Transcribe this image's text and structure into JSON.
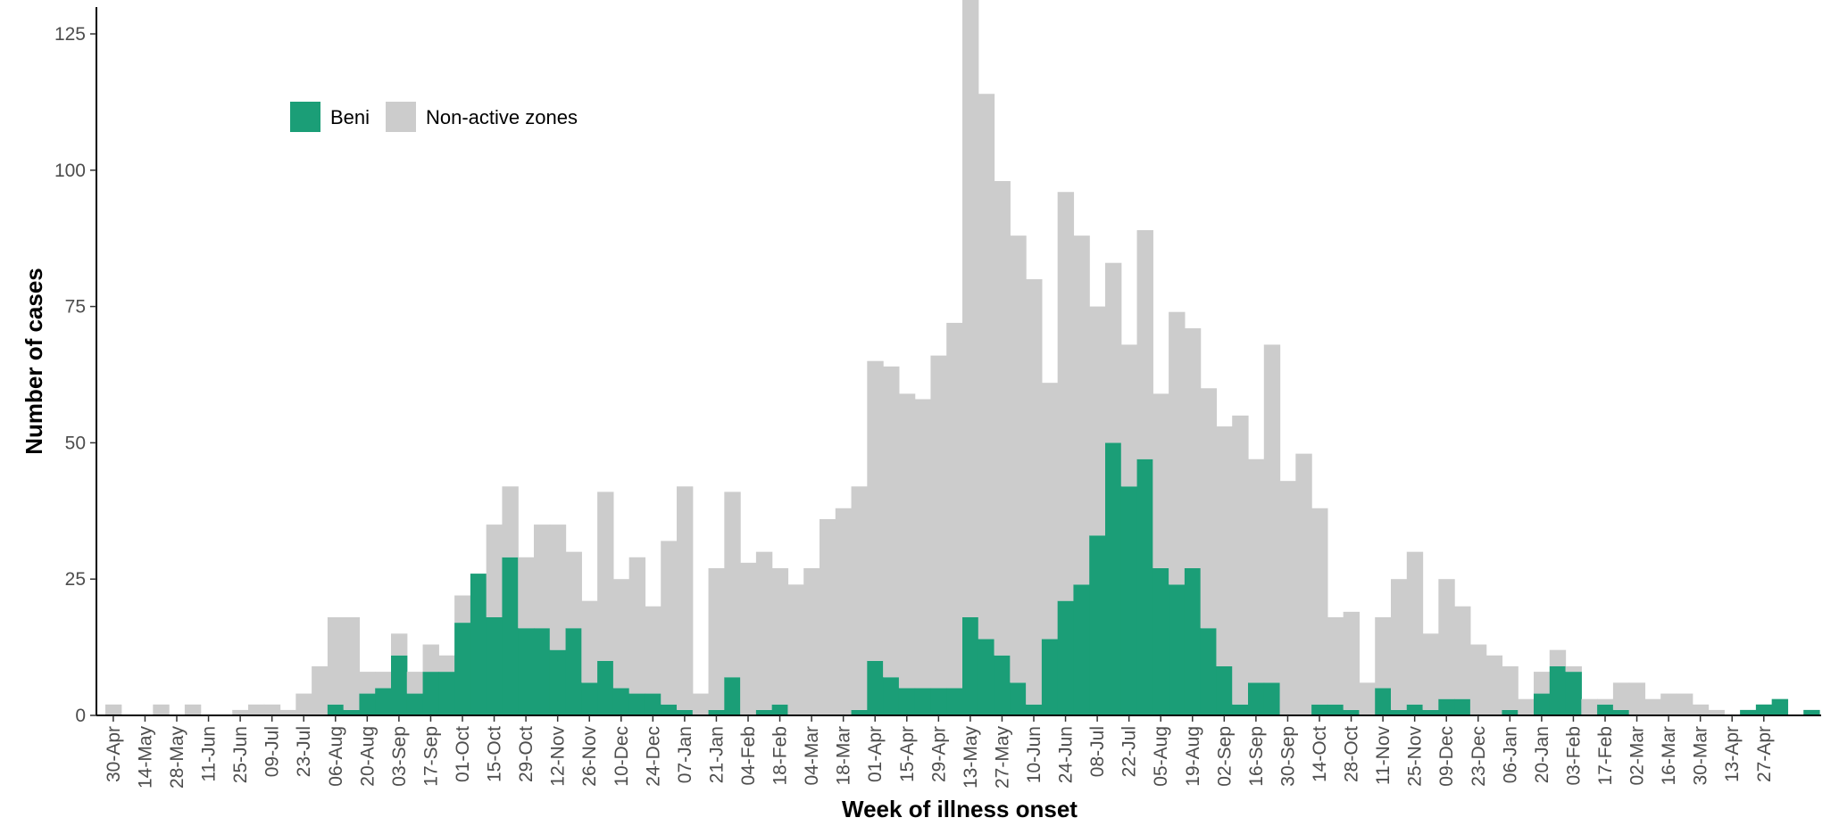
{
  "chart_data": {
    "type": "bar",
    "stacked": true,
    "title": "",
    "xlabel": "Week of illness onset",
    "ylabel": "Number of cases",
    "ylim": [
      0,
      125
    ],
    "yticks": [
      0,
      25,
      50,
      75,
      100,
      125
    ],
    "grid": false,
    "legend_position": "top-left",
    "x_tick_labels": [
      "30-Apr",
      "14-May",
      "28-May",
      "11-Jun",
      "25-Jun",
      "09-Jul",
      "23-Jul",
      "06-Aug",
      "20-Aug",
      "03-Sep",
      "17-Sep",
      "01-Oct",
      "15-Oct",
      "29-Oct",
      "12-Nov",
      "26-Nov",
      "10-Dec",
      "24-Dec",
      "07-Jan",
      "21-Jan",
      "04-Feb",
      "18-Feb",
      "04-Mar",
      "18-Mar",
      "01-Apr",
      "15-Apr",
      "29-Apr",
      "13-May",
      "27-May",
      "10-Jun",
      "24-Jun",
      "08-Jul",
      "22-Jul",
      "05-Aug",
      "19-Aug",
      "02-Sep",
      "16-Sep",
      "30-Sep",
      "14-Oct",
      "28-Oct",
      "11-Nov",
      "25-Nov",
      "09-Dec",
      "23-Dec",
      "06-Jan",
      "20-Jan",
      "03-Feb",
      "17-Feb",
      "02-Mar",
      "16-Mar",
      "30-Mar",
      "13-Apr",
      "27-Apr"
    ],
    "series": [
      {
        "name": "Beni",
        "color": "#1b9e77",
        "values": [
          0,
          0,
          0,
          0,
          0,
          0,
          0,
          0,
          0,
          0,
          0,
          0,
          0,
          0,
          2,
          1,
          4,
          5,
          11,
          4,
          8,
          8,
          17,
          26,
          18,
          29,
          16,
          16,
          12,
          16,
          6,
          10,
          5,
          4,
          4,
          2,
          1,
          0,
          1,
          7,
          0,
          1,
          2,
          0,
          0,
          0,
          0,
          1,
          10,
          7,
          5,
          5,
          5,
          5,
          18,
          14,
          11,
          6,
          2,
          14,
          21,
          24,
          33,
          50,
          42,
          47,
          27,
          24,
          27,
          16,
          9,
          2,
          6,
          6,
          0,
          0,
          2,
          2,
          1,
          0,
          5,
          1,
          2,
          1,
          3,
          3,
          0,
          0,
          1,
          0,
          4,
          9,
          8,
          0,
          2,
          1,
          0,
          0,
          0,
          0,
          0,
          0,
          0,
          1,
          2,
          3,
          0,
          1
        ]
      },
      {
        "name": "Non-active zones",
        "color": "#cccccc",
        "values": [
          2,
          0,
          0,
          2,
          0,
          2,
          0,
          0,
          1,
          2,
          2,
          1,
          4,
          9,
          16,
          17,
          4,
          3,
          4,
          4,
          5,
          3,
          5,
          0,
          17,
          13,
          13,
          19,
          23,
          14,
          15,
          31,
          20,
          25,
          16,
          30,
          41,
          4,
          26,
          34,
          28,
          29,
          25,
          24,
          27,
          36,
          38,
          41,
          55,
          57,
          54,
          53,
          61,
          67,
          117,
          100,
          87,
          82,
          78,
          47,
          75,
          64,
          42,
          33,
          26,
          42,
          32,
          50,
          44,
          44,
          44,
          53,
          41,
          62,
          43,
          48,
          36,
          16,
          18,
          6,
          13,
          24,
          28,
          14,
          22,
          17,
          13,
          11,
          8,
          3,
          4,
          3,
          1,
          3,
          1,
          5,
          6,
          3,
          4,
          4,
          2,
          1,
          0,
          0,
          0,
          0,
          0,
          0
        ]
      }
    ]
  }
}
